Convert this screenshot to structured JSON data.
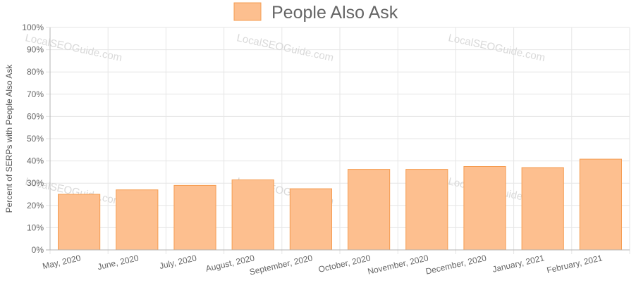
{
  "chart_data": {
    "type": "bar",
    "title": "",
    "xlabel": "",
    "ylabel": "Percent of SERPs with People Also Ask",
    "categories": [
      "May, 2020",
      "June, 2020",
      "July, 2020",
      "August, 2020",
      "September, 2020",
      "October, 2020",
      "November, 2020",
      "December, 2020",
      "January, 2021",
      "February, 2021"
    ],
    "series": [
      {
        "name": "People Also Ask",
        "values": [
          25,
          27,
          29,
          31.5,
          27.5,
          36.2,
          36.2,
          37.5,
          37,
          40.8
        ]
      }
    ],
    "y_ticks": [
      "0%",
      "10%",
      "20%",
      "30%",
      "40%",
      "50%",
      "60%",
      "70%",
      "80%",
      "90%",
      "100%"
    ],
    "ylim": [
      0,
      100
    ],
    "grid": true,
    "legend": "top-center",
    "colors": {
      "bar_fill": "#fdbf8f",
      "bar_stroke": "#f59c50",
      "grid": "#e6e6e6",
      "axis": "#b3b3b3",
      "text": "#666666"
    },
    "watermark": "LocalSEOGuide.com"
  }
}
